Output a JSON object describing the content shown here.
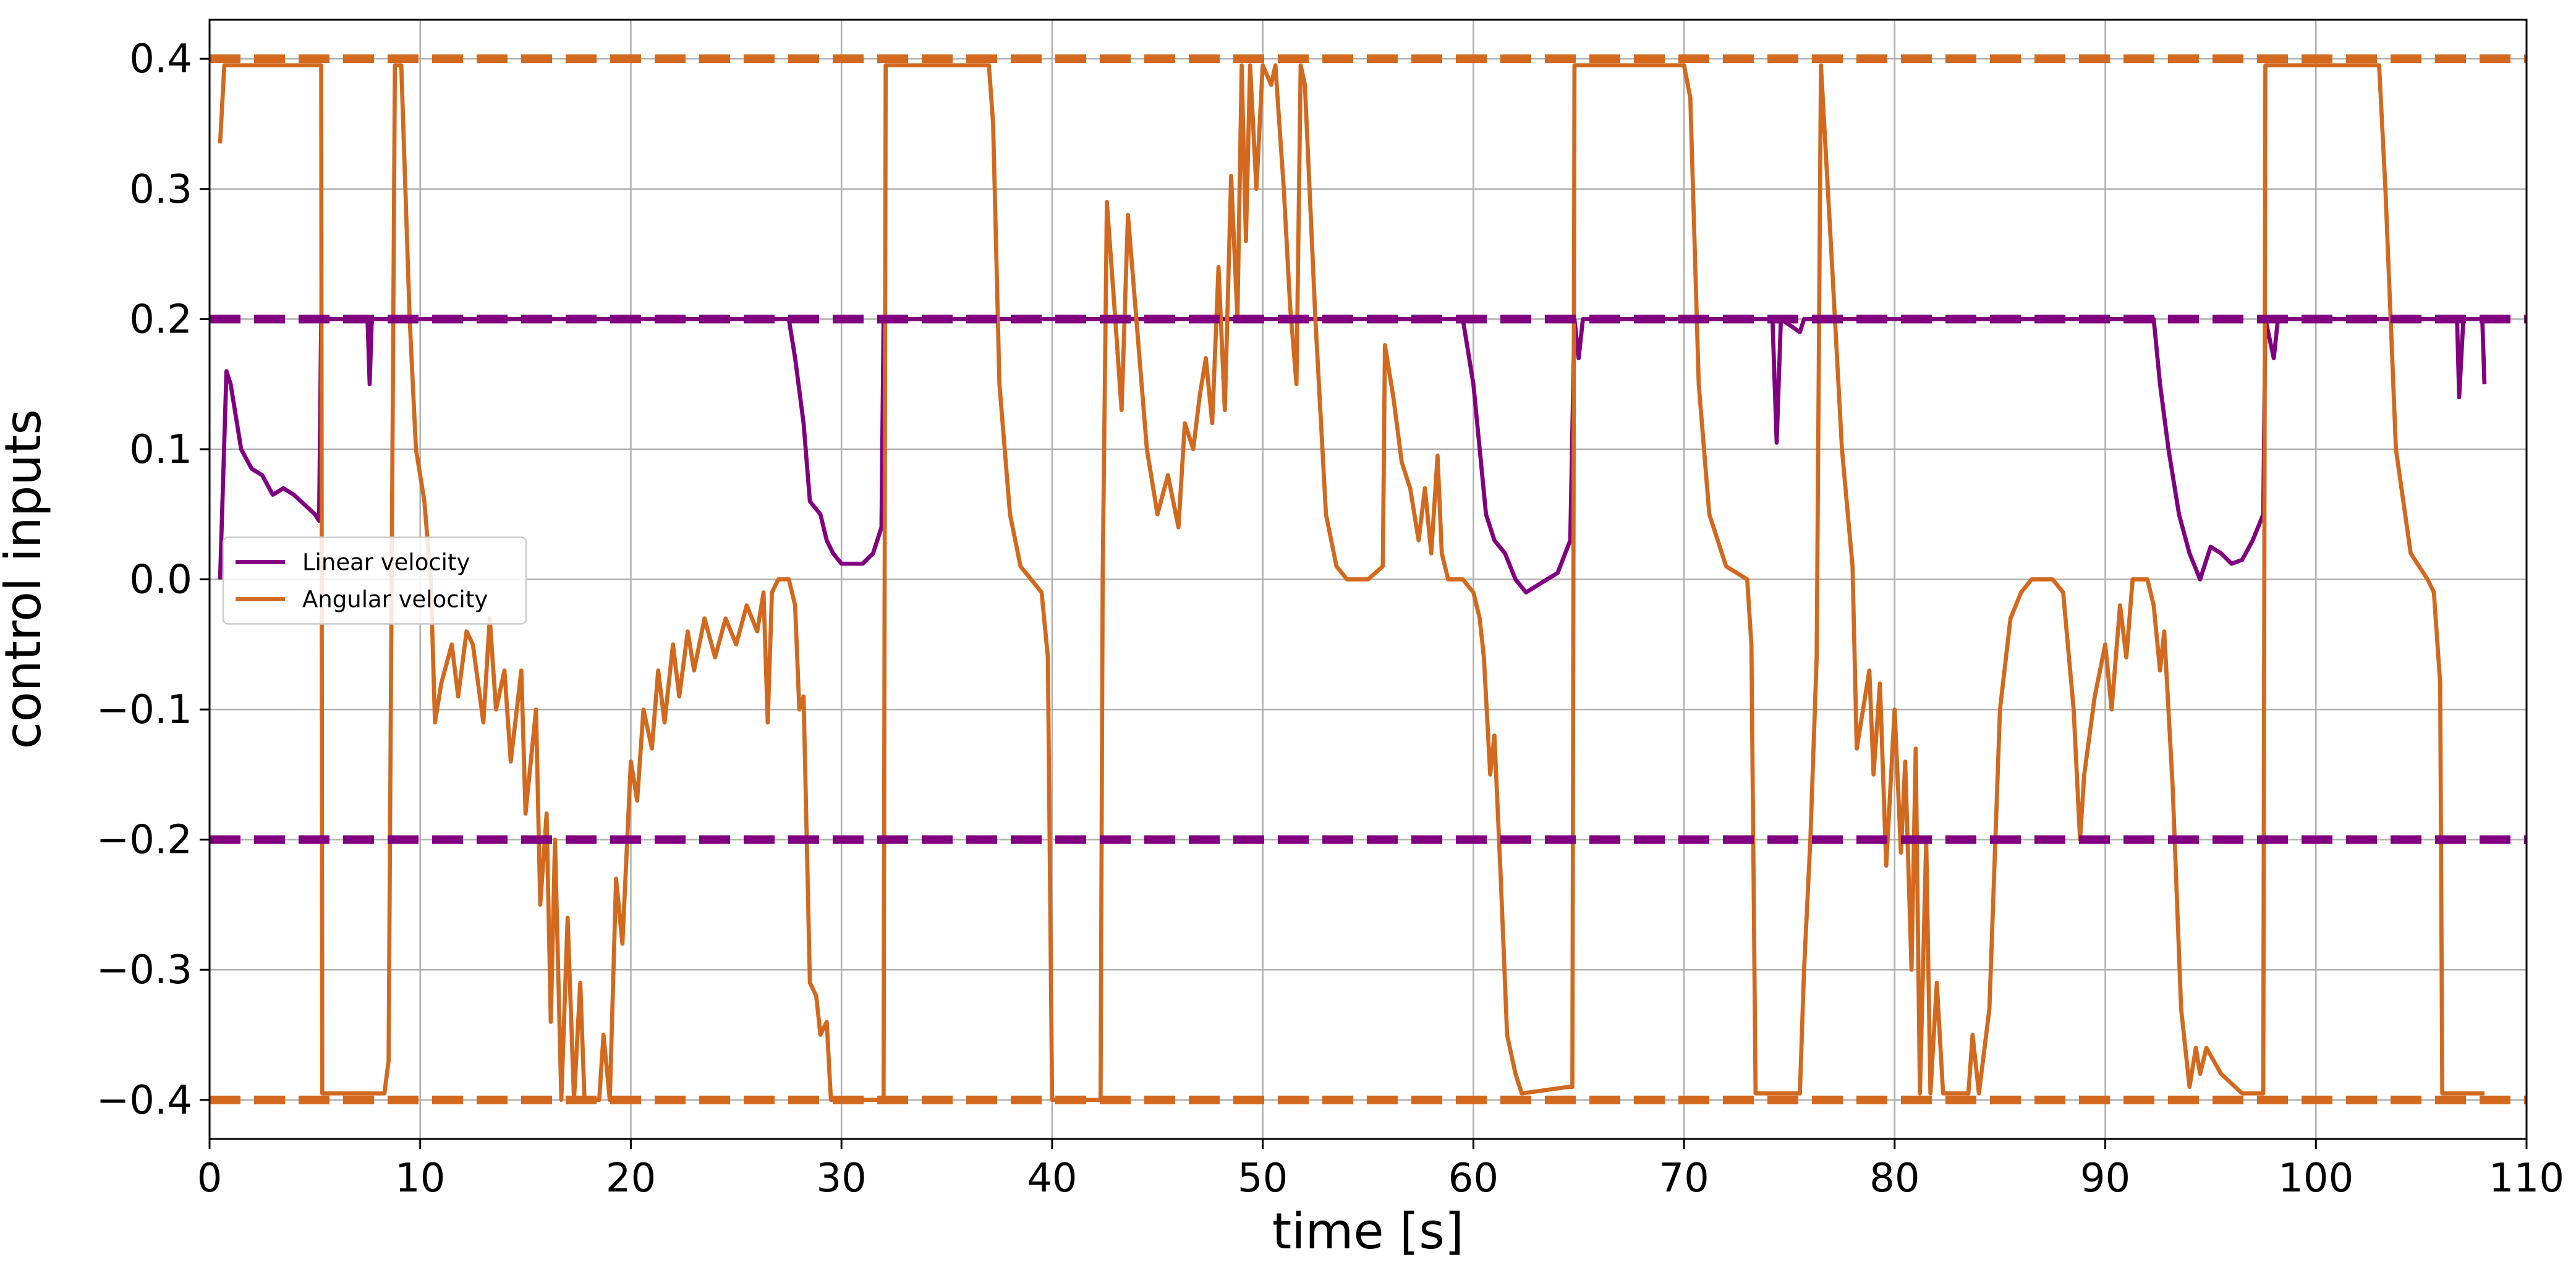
{
  "chart_data": {
    "type": "line",
    "xlabel": "time [s]",
    "ylabel": "control inputs",
    "xlim": [
      0,
      110
    ],
    "ylim": [
      -0.43,
      0.43
    ],
    "xticks": [
      0,
      10,
      20,
      30,
      40,
      50,
      60,
      70,
      80,
      90,
      100,
      110
    ],
    "yticks": [
      {
        "value": -0.4,
        "label": "−0.4"
      },
      {
        "value": -0.3,
        "label": "−0.3"
      },
      {
        "value": -0.2,
        "label": "−0.2"
      },
      {
        "value": -0.1,
        "label": "−0.1"
      },
      {
        "value": 0,
        "label": "0.0"
      },
      0.1,
      0.2,
      0.3,
      0.4
    ],
    "grid": true,
    "legend": "center left",
    "reference_lines": [
      {
        "y": 0.2,
        "color": "#800080",
        "style": "dashed"
      },
      {
        "y": -0.2,
        "color": "#800080",
        "style": "dashed"
      },
      {
        "y": 0.4,
        "color": "#d2691e",
        "style": "dashed"
      },
      {
        "y": -0.4,
        "color": "#d2691e",
        "style": "dashed"
      }
    ],
    "series": [
      {
        "name": "Linear velocity",
        "color": "#800080",
        "x": [
          0.5,
          0.8,
          1.0,
          1.5,
          2,
          2.5,
          3,
          3.5,
          4,
          5,
          5.2,
          5.3,
          7.5,
          7.6,
          7.7,
          27.5,
          27.8,
          28.2,
          28.5,
          29,
          29.3,
          29.6,
          30,
          31,
          31.5,
          31.9,
          32,
          59.5,
          60,
          60.3,
          60.6,
          61,
          61.5,
          62,
          62.5,
          63,
          64,
          64.6,
          64.8,
          65,
          65.2,
          74.2,
          74.4,
          74.6,
          75.5,
          75.7,
          92.3,
          92.6,
          93,
          93.5,
          94,
          94.5,
          95,
          95.5,
          96,
          96.5,
          97,
          97.5,
          97.6,
          98,
          98.2,
          106.7,
          106.8,
          107,
          107.9,
          108
        ],
        "values": [
          0.0,
          0.16,
          0.15,
          0.1,
          0.085,
          0.08,
          0.065,
          0.07,
          0.065,
          0.05,
          0.045,
          0.2,
          0.2,
          0.15,
          0.2,
          0.2,
          0.17,
          0.12,
          0.06,
          0.05,
          0.03,
          0.02,
          0.012,
          0.012,
          0.02,
          0.04,
          0.2,
          0.2,
          0.15,
          0.1,
          0.05,
          0.03,
          0.02,
          0.0,
          -0.01,
          -0.005,
          0.005,
          0.03,
          0.2,
          0.17,
          0.2,
          0.2,
          0.105,
          0.2,
          0.19,
          0.2,
          0.2,
          0.15,
          0.1,
          0.05,
          0.02,
          0.0,
          0.025,
          0.02,
          0.012,
          0.015,
          0.03,
          0.05,
          0.2,
          0.17,
          0.2,
          0.2,
          0.14,
          0.2,
          0.2,
          0.15
        ]
      },
      {
        "name": "Angular velocity",
        "color": "#d2691e",
        "x": [
          0.5,
          0.7,
          5.3,
          5.35,
          8.3,
          8.5,
          8.8,
          9.1,
          9.5,
          9.8,
          10.2,
          10.5,
          10.7,
          11,
          11.5,
          11.8,
          12.2,
          12.5,
          13,
          13.3,
          13.6,
          14,
          14.3,
          14.8,
          15,
          15.5,
          15.7,
          16,
          16.2,
          16.4,
          16.7,
          17,
          17.3,
          17.6,
          17.8,
          18.5,
          18.7,
          19,
          19.3,
          19.6,
          20,
          20.3,
          20.6,
          21,
          21.3,
          21.6,
          22,
          22.3,
          22.7,
          23,
          23.5,
          24,
          24.5,
          25,
          25.5,
          26,
          26.3,
          26.5,
          26.7,
          27,
          27.5,
          27.8,
          28,
          28.2,
          28.5,
          28.8,
          29,
          29.3,
          29.5,
          32,
          32.1,
          37,
          37.2,
          37.5,
          38,
          38.5,
          39,
          39.5,
          39.8,
          40,
          42.3,
          42.4,
          42.6,
          43,
          43.3,
          43.6,
          44,
          44.5,
          45,
          45.5,
          46,
          46.3,
          46.7,
          47,
          47.3,
          47.6,
          47.9,
          48.2,
          48.5,
          48.8,
          49,
          49.2,
          49.4,
          49.7,
          50,
          50.4,
          50.6,
          51,
          51.3,
          51.6,
          51.8,
          52,
          52.5,
          53,
          53.5,
          54,
          55,
          55.7,
          55.8,
          56.2,
          56.6,
          57,
          57.4,
          57.7,
          58,
          58.3,
          58.5,
          58.8,
          59.5,
          60,
          60.3,
          60.5,
          60.8,
          61,
          61.3,
          61.6,
          62,
          62.3,
          64.5,
          64.7,
          64.8,
          70,
          70.3,
          70.7,
          71.2,
          72,
          73,
          73.2,
          73.4,
          75.5,
          75.7,
          76,
          76.3,
          76.5,
          77,
          77.5,
          78,
          78.2,
          78.5,
          78.8,
          79,
          79.3,
          79.6,
          80,
          80.3,
          80.5,
          80.8,
          81,
          81.2,
          81.5,
          81.7,
          82,
          82.3,
          83.5,
          83.7,
          84,
          84.5,
          85,
          85.5,
          86,
          86.5,
          87.5,
          88,
          88.5,
          88.8,
          89,
          89.5,
          90,
          90.3,
          90.7,
          91,
          91.3,
          92,
          92.3,
          92.6,
          92.8,
          93.2,
          93.6,
          94,
          94.3,
          94.5,
          94.8,
          95.5,
          96.5,
          97.5,
          97.6,
          103,
          103.3,
          103.8,
          104.5,
          105.3,
          105.6,
          105.9,
          106,
          108
        ],
        "values": [
          0.335,
          0.395,
          0.395,
          -0.395,
          -0.395,
          -0.37,
          0.395,
          0.395,
          0.2,
          0.1,
          0.06,
          0.0,
          -0.11,
          -0.08,
          -0.05,
          -0.09,
          -0.04,
          -0.05,
          -0.11,
          -0.03,
          -0.1,
          -0.07,
          -0.14,
          -0.07,
          -0.18,
          -0.1,
          -0.25,
          -0.18,
          -0.34,
          -0.2,
          -0.4,
          -0.26,
          -0.4,
          -0.31,
          -0.4,
          -0.4,
          -0.35,
          -0.4,
          -0.23,
          -0.28,
          -0.14,
          -0.17,
          -0.1,
          -0.13,
          -0.07,
          -0.11,
          -0.05,
          -0.09,
          -0.04,
          -0.07,
          -0.03,
          -0.06,
          -0.03,
          -0.05,
          -0.02,
          -0.04,
          -0.01,
          -0.11,
          -0.01,
          0.0,
          0.0,
          -0.02,
          -0.1,
          -0.09,
          -0.31,
          -0.32,
          -0.35,
          -0.34,
          -0.4,
          -0.4,
          0.395,
          0.395,
          0.35,
          0.15,
          0.05,
          0.01,
          0.0,
          -0.01,
          -0.06,
          -0.4,
          -0.4,
          0.0,
          0.29,
          0.2,
          0.13,
          0.28,
          0.2,
          0.1,
          0.05,
          0.08,
          0.04,
          0.12,
          0.1,
          0.14,
          0.17,
          0.12,
          0.24,
          0.13,
          0.31,
          0.2,
          0.395,
          0.26,
          0.395,
          0.3,
          0.395,
          0.38,
          0.395,
          0.3,
          0.21,
          0.15,
          0.395,
          0.38,
          0.2,
          0.05,
          0.01,
          0.0,
          0.0,
          0.01,
          0.18,
          0.14,
          0.09,
          0.07,
          0.03,
          0.07,
          0.02,
          0.095,
          0.02,
          0.0,
          0.0,
          -0.01,
          -0.03,
          -0.06,
          -0.15,
          -0.12,
          -0.23,
          -0.35,
          -0.38,
          -0.395,
          -0.39,
          -0.39,
          0.395,
          0.395,
          0.37,
          0.15,
          0.05,
          0.01,
          0.0,
          -0.05,
          -0.395,
          -0.395,
          -0.3,
          -0.2,
          -0.06,
          0.395,
          0.25,
          0.1,
          0.01,
          -0.13,
          -0.1,
          -0.07,
          -0.15,
          -0.08,
          -0.22,
          -0.1,
          -0.21,
          -0.14,
          -0.3,
          -0.13,
          -0.395,
          -0.2,
          -0.395,
          -0.31,
          -0.395,
          -0.395,
          -0.35,
          -0.395,
          -0.33,
          -0.1,
          -0.03,
          -0.01,
          0.0,
          0.0,
          -0.01,
          -0.1,
          -0.2,
          -0.15,
          -0.09,
          -0.05,
          -0.1,
          -0.02,
          -0.06,
          0.0,
          0.0,
          -0.02,
          -0.07,
          -0.04,
          -0.16,
          -0.33,
          -0.39,
          -0.36,
          -0.38,
          -0.36,
          -0.38,
          -0.395,
          -0.395,
          0.395,
          0.395,
          0.3,
          0.1,
          0.02,
          0.0,
          -0.01,
          -0.08,
          -0.395,
          -0.395
        ]
      }
    ]
  }
}
